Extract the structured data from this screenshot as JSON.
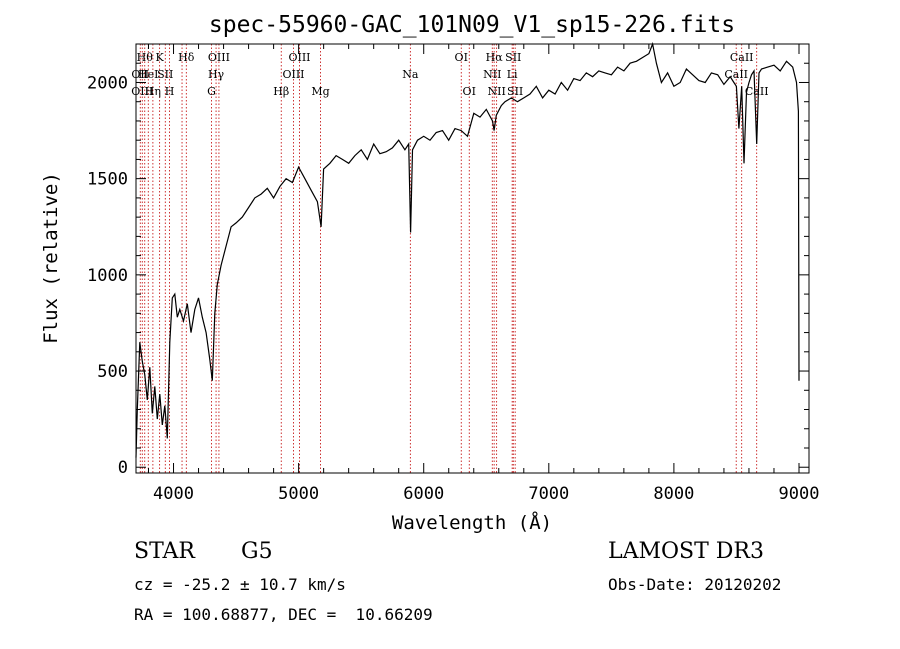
{
  "chart_data": {
    "type": "line",
    "title": "spec-55960-GAC_101N09_V1_sp15-226.fits",
    "xlabel": "Wavelength (Å)",
    "ylabel": "Flux (relative)",
    "xlim": [
      3700,
      9080
    ],
    "ylim": [
      -30,
      2200
    ],
    "xticks": [
      4000,
      5000,
      6000,
      7000,
      8000,
      9000
    ],
    "yticks": [
      0,
      500,
      1000,
      1500,
      2000
    ],
    "series": [
      {
        "name": "flux",
        "x": [
          3700,
          3710,
          3730,
          3750,
          3770,
          3790,
          3810,
          3830,
          3850,
          3870,
          3890,
          3910,
          3930,
          3950,
          3970,
          3990,
          4010,
          4030,
          4050,
          4080,
          4110,
          4140,
          4170,
          4200,
          4230,
          4260,
          4290,
          4310,
          4330,
          4350,
          4380,
          4420,
          4460,
          4500,
          4550,
          4600,
          4650,
          4700,
          4750,
          4800,
          4850,
          4900,
          4950,
          5000,
          5050,
          5100,
          5150,
          5180,
          5200,
          5250,
          5300,
          5350,
          5400,
          5450,
          5500,
          5550,
          5600,
          5650,
          5700,
          5750,
          5800,
          5850,
          5880,
          5895,
          5910,
          5950,
          6000,
          6050,
          6100,
          6150,
          6200,
          6250,
          6300,
          6350,
          6400,
          6450,
          6500,
          6550,
          6563,
          6580,
          6620,
          6650,
          6700,
          6750,
          6800,
          6850,
          6900,
          6950,
          7000,
          7050,
          7100,
          7150,
          7200,
          7250,
          7300,
          7350,
          7400,
          7450,
          7500,
          7550,
          7600,
          7650,
          7700,
          7750,
          7800,
          7830,
          7860,
          7900,
          7950,
          8000,
          8050,
          8100,
          8150,
          8200,
          8250,
          8300,
          8350,
          8400,
          8450,
          8480,
          8500,
          8520,
          8542,
          8560,
          8580,
          8600,
          8620,
          8640,
          8662,
          8680,
          8700,
          8750,
          8800,
          8850,
          8900,
          8950,
          8980,
          8995,
          9000
        ],
        "values": [
          50,
          300,
          650,
          550,
          480,
          350,
          520,
          280,
          420,
          250,
          380,
          220,
          320,
          150,
          650,
          880,
          900,
          780,
          820,
          760,
          850,
          700,
          820,
          880,
          780,
          700,
          560,
          450,
          800,
          950,
          1050,
          1150,
          1250,
          1270,
          1300,
          1350,
          1400,
          1420,
          1450,
          1400,
          1460,
          1500,
          1480,
          1560,
          1500,
          1440,
          1380,
          1250,
          1550,
          1580,
          1620,
          1600,
          1580,
          1620,
          1650,
          1600,
          1680,
          1630,
          1640,
          1660,
          1700,
          1650,
          1680,
          1220,
          1650,
          1700,
          1720,
          1700,
          1740,
          1750,
          1700,
          1760,
          1750,
          1720,
          1840,
          1820,
          1860,
          1800,
          1750,
          1830,
          1880,
          1900,
          1920,
          1900,
          1920,
          1940,
          1980,
          1920,
          1960,
          1940,
          2000,
          1960,
          2020,
          2010,
          2050,
          2030,
          2060,
          2050,
          2040,
          2080,
          2060,
          2100,
          2110,
          2130,
          2150,
          2200,
          2100,
          2000,
          2050,
          1980,
          2000,
          2070,
          2040,
          2010,
          2000,
          2050,
          2040,
          1990,
          2030,
          2000,
          1980,
          1760,
          1980,
          1580,
          1950,
          2000,
          2040,
          2060,
          1680,
          2050,
          2070,
          2080,
          2090,
          2060,
          2110,
          2080,
          2000,
          1850,
          450
        ]
      }
    ],
    "lines": [
      {
        "x": 3734,
        "label": "OII",
        "row": 1
      },
      {
        "x": 3750,
        "label": "OIII",
        "row": 2
      },
      {
        "x": 3770,
        "label": "Hθ",
        "row": 0
      },
      {
        "x": 3798,
        "label": "HeI",
        "row": 1
      },
      {
        "x": 3835,
        "label": "Hη",
        "row": 2
      },
      {
        "x": 3889,
        "label": "K",
        "row": 0
      },
      {
        "x": 3934,
        "label": "SII",
        "row": 1
      },
      {
        "x": 3968,
        "label": "H",
        "row": 2
      },
      {
        "x": 4102,
        "label": "Hδ",
        "row": 0
      },
      {
        "x": 4068,
        "label": "",
        "row": 0
      },
      {
        "x": 4304,
        "label": "G",
        "row": 2
      },
      {
        "x": 4340,
        "label": "Hγ",
        "row": 1
      },
      {
        "x": 4363,
        "label": "OIII",
        "row": 0
      },
      {
        "x": 4861,
        "label": "Hβ",
        "row": 2
      },
      {
        "x": 4959,
        "label": "OIII",
        "row": 1
      },
      {
        "x": 5007,
        "label": "OIII",
        "row": 0
      },
      {
        "x": 5175,
        "label": "Mg",
        "row": 2
      },
      {
        "x": 5893,
        "label": "Na",
        "row": 1
      },
      {
        "x": 6300,
        "label": "OI",
        "row": 0
      },
      {
        "x": 6364,
        "label": "OI",
        "row": 2
      },
      {
        "x": 6548,
        "label": "NII",
        "row": 1
      },
      {
        "x": 6563,
        "label": "Hα",
        "row": 0
      },
      {
        "x": 6583,
        "label": "NII",
        "row": 2
      },
      {
        "x": 6707,
        "label": "Li",
        "row": 1
      },
      {
        "x": 6716,
        "label": "SII",
        "row": 0
      },
      {
        "x": 6731,
        "label": "SII",
        "row": 2
      },
      {
        "x": 8498,
        "label": "CaII",
        "row": 1
      },
      {
        "x": 8542,
        "label": "CaII",
        "row": 0
      },
      {
        "x": 8662,
        "label": "CaII",
        "row": 2
      }
    ]
  },
  "info": {
    "object_class": "STAR",
    "subclass": "G5",
    "survey": "LAMOST DR3",
    "redshift_text": "cz = -25.2 ± 10.7 km/s",
    "obs_date_text": "Obs-Date: 20120202",
    "coords_text": "RA = 100.68877, DEC =  10.66209"
  }
}
